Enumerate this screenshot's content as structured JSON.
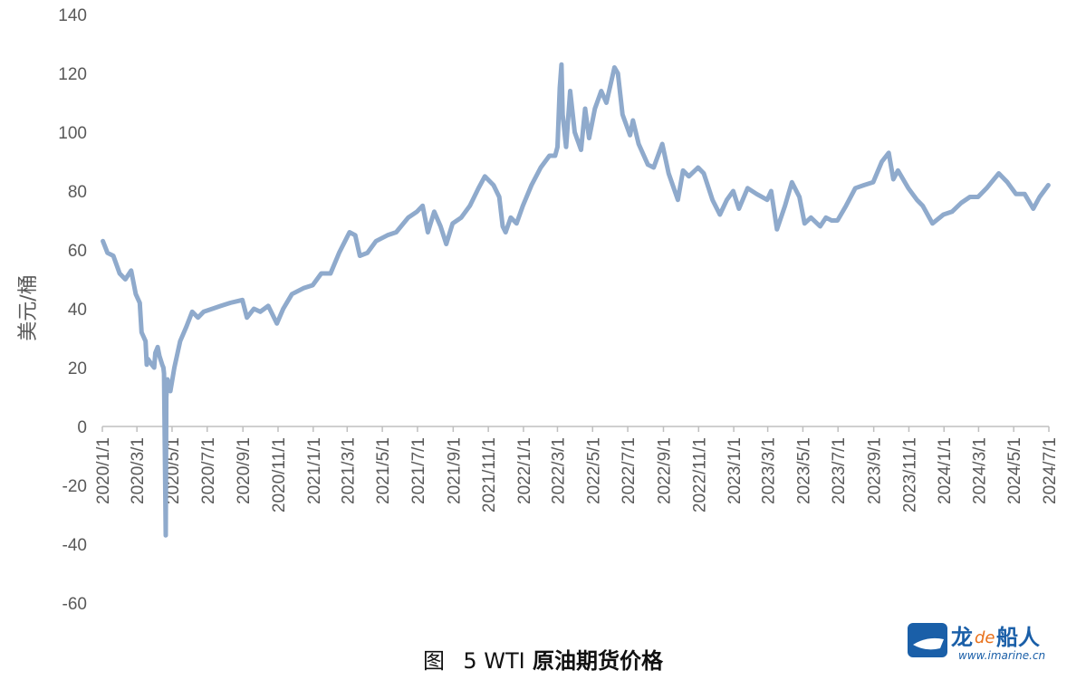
{
  "chart_data": {
    "type": "line",
    "title": "图 5 WTI 原油期货价格",
    "caption_prefix": "图",
    "caption_number": "5 WTI",
    "caption_text": "原油期货价格",
    "ylabel": "美元/桶",
    "xlabel": "",
    "ylim": [
      -60,
      140
    ],
    "yticks": [
      -60,
      -40,
      -20,
      0,
      20,
      40,
      60,
      80,
      100,
      120,
      140
    ],
    "xticks": [
      "2020/1/1",
      "2020/3/1",
      "2020/5/1",
      "2020/7/1",
      "2020/9/1",
      "2020/11/1",
      "2021/1/1",
      "2021/3/1",
      "2021/5/1",
      "2021/7/1",
      "2021/9/1",
      "2021/11/1",
      "2022/1/1",
      "2022/3/1",
      "2022/5/1",
      "2022/7/1",
      "2022/9/1",
      "2022/11/1",
      "2023/1/1",
      "2023/3/1",
      "2023/5/1",
      "2023/7/1",
      "2023/9/1",
      "2023/11/1",
      "2024/1/1",
      "2024/3/1",
      "2024/5/1",
      "2024/7/1"
    ],
    "xlim": [
      "2020/1/1",
      "2024/7/1"
    ],
    "grid": false,
    "line_color": "#8faacc",
    "series": [
      {
        "name": "",
        "points": [
          [
            "2020/1/2",
            63
          ],
          [
            "2020/1/10",
            59
          ],
          [
            "2020/1/20",
            58
          ],
          [
            "2020/1/31",
            52
          ],
          [
            "2020/2/10",
            50
          ],
          [
            "2020/2/20",
            53
          ],
          [
            "2020/2/28",
            45
          ],
          [
            "2020/3/6",
            42
          ],
          [
            "2020/3/9",
            32
          ],
          [
            "2020/3/16",
            29
          ],
          [
            "2020/3/18",
            21
          ],
          [
            "2020/3/20",
            23
          ],
          [
            "2020/3/27",
            21
          ],
          [
            "2020/3/31",
            20
          ],
          [
            "2020/4/2",
            25
          ],
          [
            "2020/4/6",
            27
          ],
          [
            "2020/4/9",
            24
          ],
          [
            "2020/4/14",
            21
          ],
          [
            "2020/4/16",
            20
          ],
          [
            "2020/4/17",
            18
          ],
          [
            "2020/4/20",
            -37
          ],
          [
            "2020/4/21",
            10
          ],
          [
            "2020/4/23",
            16
          ],
          [
            "2020/4/28",
            12
          ],
          [
            "2020/5/5",
            20
          ],
          [
            "2020/5/15",
            29
          ],
          [
            "2020/5/26",
            34
          ],
          [
            "2020/6/5",
            39
          ],
          [
            "2020/6/15",
            37
          ],
          [
            "2020/6/25",
            39
          ],
          [
            "2020/7/10",
            40
          ],
          [
            "2020/7/25",
            41
          ],
          [
            "2020/8/10",
            42
          ],
          [
            "2020/8/31",
            43
          ],
          [
            "2020/9/8",
            37
          ],
          [
            "2020/9/20",
            40
          ],
          [
            "2020/10/1",
            39
          ],
          [
            "2020/10/15",
            41
          ],
          [
            "2020/10/30",
            35
          ],
          [
            "2020/11/10",
            40
          ],
          [
            "2020/11/25",
            45
          ],
          [
            "2020/12/15",
            47
          ],
          [
            "2020/12/31",
            48
          ],
          [
            "2021/1/15",
            52
          ],
          [
            "2021/1/31",
            52
          ],
          [
            "2021/2/15",
            59
          ],
          [
            "2021/3/5",
            66
          ],
          [
            "2021/3/15",
            65
          ],
          [
            "2021/3/23",
            58
          ],
          [
            "2021/4/5",
            59
          ],
          [
            "2021/4/20",
            63
          ],
          [
            "2021/5/10",
            65
          ],
          [
            "2021/5/25",
            66
          ],
          [
            "2021/6/15",
            71
          ],
          [
            "2021/6/30",
            73
          ],
          [
            "2021/7/10",
            75
          ],
          [
            "2021/7/19",
            66
          ],
          [
            "2021/7/30",
            73
          ],
          [
            "2021/8/10",
            68
          ],
          [
            "2021/8/20",
            62
          ],
          [
            "2021/8/31",
            69
          ],
          [
            "2021/9/15",
            71
          ],
          [
            "2021/9/30",
            75
          ],
          [
            "2021/10/15",
            81
          ],
          [
            "2021/10/26",
            85
          ],
          [
            "2021/11/10",
            82
          ],
          [
            "2021/11/20",
            78
          ],
          [
            "2021/11/26",
            68
          ],
          [
            "2021/12/1",
            66
          ],
          [
            "2021/12/10",
            71
          ],
          [
            "2021/12/20",
            69
          ],
          [
            "2021/12/31",
            75
          ],
          [
            "2022/1/15",
            82
          ],
          [
            "2022/1/31",
            88
          ],
          [
            "2022/2/15",
            92
          ],
          [
            "2022/2/25",
            92
          ],
          [
            "2022/3/1",
            95
          ],
          [
            "2022/3/5",
            115
          ],
          [
            "2022/3/8",
            123
          ],
          [
            "2022/3/10",
            106
          ],
          [
            "2022/3/16",
            95
          ],
          [
            "2022/3/23",
            114
          ],
          [
            "2022/3/31",
            100
          ],
          [
            "2022/4/11",
            94
          ],
          [
            "2022/4/18",
            108
          ],
          [
            "2022/4/25",
            98
          ],
          [
            "2022/5/5",
            108
          ],
          [
            "2022/5/16",
            114
          ],
          [
            "2022/5/25",
            110
          ],
          [
            "2022/6/8",
            122
          ],
          [
            "2022/6/14",
            120
          ],
          [
            "2022/6/22",
            106
          ],
          [
            "2022/7/5",
            99
          ],
          [
            "2022/7/10",
            104
          ],
          [
            "2022/7/20",
            96
          ],
          [
            "2022/8/5",
            89
          ],
          [
            "2022/8/15",
            88
          ],
          [
            "2022/8/30",
            96
          ],
          [
            "2022/9/10",
            86
          ],
          [
            "2022/9/26",
            77
          ],
          [
            "2022/10/5",
            87
          ],
          [
            "2022/10/15",
            85
          ],
          [
            "2022/10/31",
            88
          ],
          [
            "2022/11/10",
            86
          ],
          [
            "2022/11/25",
            77
          ],
          [
            "2022/12/8",
            72
          ],
          [
            "2022/12/20",
            77
          ],
          [
            "2022/12/31",
            80
          ],
          [
            "2023/1/10",
            74
          ],
          [
            "2023/1/25",
            81
          ],
          [
            "2023/2/10",
            79
          ],
          [
            "2023/2/28",
            77
          ],
          [
            "2023/3/7",
            80
          ],
          [
            "2023/3/17",
            67
          ],
          [
            "2023/3/31",
            75
          ],
          [
            "2023/4/12",
            83
          ],
          [
            "2023/4/25",
            78
          ],
          [
            "2023/5/4",
            69
          ],
          [
            "2023/5/15",
            71
          ],
          [
            "2023/5/31",
            68
          ],
          [
            "2023/6/10",
            71
          ],
          [
            "2023/6/20",
            70
          ],
          [
            "2023/6/30",
            70
          ],
          [
            "2023/7/15",
            75
          ],
          [
            "2023/7/31",
            81
          ],
          [
            "2023/8/15",
            82
          ],
          [
            "2023/8/31",
            83
          ],
          [
            "2023/9/15",
            90
          ],
          [
            "2023/9/27",
            93
          ],
          [
            "2023/10/5",
            84
          ],
          [
            "2023/10/13",
            87
          ],
          [
            "2023/10/31",
            81
          ],
          [
            "2023/11/15",
            77
          ],
          [
            "2023/11/25",
            75
          ],
          [
            "2023/12/12",
            69
          ],
          [
            "2023/12/31",
            72
          ],
          [
            "2024/1/15",
            73
          ],
          [
            "2024/1/31",
            76
          ],
          [
            "2024/2/15",
            78
          ],
          [
            "2024/2/29",
            78
          ],
          [
            "2024/3/15",
            81
          ],
          [
            "2024/4/5",
            86
          ],
          [
            "2024/4/20",
            83
          ],
          [
            "2024/5/5",
            79
          ],
          [
            "2024/5/20",
            79
          ],
          [
            "2024/6/4",
            74
          ],
          [
            "2024/6/15",
            78
          ],
          [
            "2024/6/30",
            82
          ]
        ]
      }
    ]
  },
  "watermark": {
    "brand": "龙de船人",
    "brand_prefix": "龙",
    "brand_de": "de",
    "brand_suffix": "船人",
    "url": "www.imarine.cn",
    "colors": {
      "blue": "#1a5fa8",
      "orange": "#e8701a"
    }
  }
}
